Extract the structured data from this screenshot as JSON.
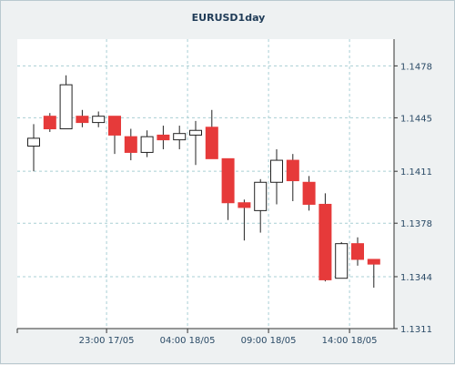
{
  "chart_data": {
    "type": "candlestick",
    "title": "EURUSD1day",
    "xlabel": "",
    "ylabel": "",
    "ylim": [
      1.1311,
      1.1495
    ],
    "yticks": [
      1.1311,
      1.1344,
      1.1378,
      1.1411,
      1.1445,
      1.1478
    ],
    "ytick_labels": [
      "1.1311",
      "1.1344",
      "1.1378",
      "1.1411",
      "1.1445",
      "1.1478"
    ],
    "xticks": [
      {
        "label": "23:00 17/05",
        "index": 4.5
      },
      {
        "label": "04:00 18/05",
        "index": 9.5
      },
      {
        "label": "09:00 18/05",
        "index": 14.5
      },
      {
        "label": "14:00 18/05",
        "index": 19.5
      }
    ],
    "grid": true,
    "colors": {
      "up": "#ffffff",
      "down": "#e63a3a",
      "wick": "#222222",
      "grid": "#a9cfd4"
    },
    "candles": [
      {
        "open": 1.1427,
        "high": 1.1441,
        "low": 1.1411,
        "close": 1.1432
      },
      {
        "open": 1.1446,
        "high": 1.1448,
        "low": 1.1436,
        "close": 1.1438
      },
      {
        "open": 1.1438,
        "high": 1.1472,
        "low": 1.1438,
        "close": 1.1466
      },
      {
        "open": 1.1446,
        "high": 1.145,
        "low": 1.1439,
        "close": 1.1442
      },
      {
        "open": 1.1442,
        "high": 1.1449,
        "low": 1.1439,
        "close": 1.1446
      },
      {
        "open": 1.1446,
        "high": 1.1446,
        "low": 1.1422,
        "close": 1.1434
      },
      {
        "open": 1.1433,
        "high": 1.1438,
        "low": 1.1418,
        "close": 1.1423
      },
      {
        "open": 1.1423,
        "high": 1.1437,
        "low": 1.142,
        "close": 1.1433
      },
      {
        "open": 1.1434,
        "high": 1.144,
        "low": 1.1425,
        "close": 1.1431
      },
      {
        "open": 1.1431,
        "high": 1.144,
        "low": 1.1425,
        "close": 1.1435
      },
      {
        "open": 1.1434,
        "high": 1.1443,
        "low": 1.1415,
        "close": 1.1437
      },
      {
        "open": 1.1439,
        "high": 1.145,
        "low": 1.1419,
        "close": 1.1419
      },
      {
        "open": 1.1419,
        "high": 1.1419,
        "low": 1.138,
        "close": 1.1391
      },
      {
        "open": 1.1391,
        "high": 1.1393,
        "low": 1.1367,
        "close": 1.1388
      },
      {
        "open": 1.1386,
        "high": 1.1406,
        "low": 1.1372,
        "close": 1.1404
      },
      {
        "open": 1.1404,
        "high": 1.1425,
        "low": 1.139,
        "close": 1.1418
      },
      {
        "open": 1.1418,
        "high": 1.1422,
        "low": 1.1392,
        "close": 1.1405
      },
      {
        "open": 1.1404,
        "high": 1.1408,
        "low": 1.1386,
        "close": 1.139
      },
      {
        "open": 1.139,
        "high": 1.1397,
        "low": 1.1341,
        "close": 1.1342
      },
      {
        "open": 1.1343,
        "high": 1.1366,
        "low": 1.1343,
        "close": 1.1365
      },
      {
        "open": 1.1365,
        "high": 1.1369,
        "low": 1.1351,
        "close": 1.1355
      },
      {
        "open": 1.1355,
        "high": 1.1355,
        "low": 1.1337,
        "close": 1.1352
      }
    ]
  }
}
